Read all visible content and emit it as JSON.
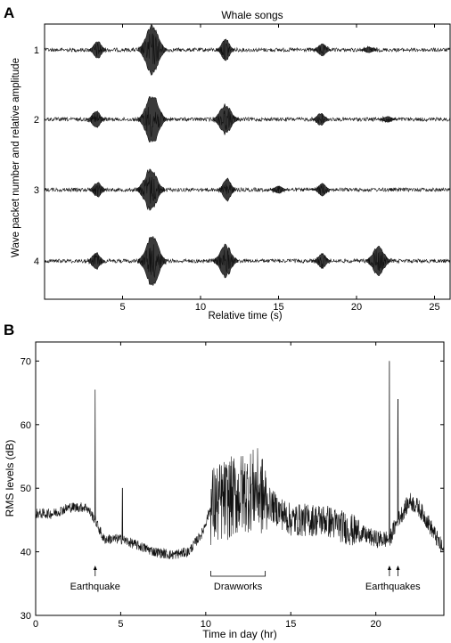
{
  "chart_data": [
    {
      "panel": "A",
      "type": "line",
      "title": "Whale songs",
      "xlabel": "Relative time (s)",
      "ylabel": "Wave packet number and relative amplitude",
      "xlim": [
        0,
        26
      ],
      "xticks": [
        5,
        10,
        15,
        20,
        25
      ],
      "yticks": [
        "1",
        "2",
        "3",
        "4"
      ],
      "series": [
        {
          "packet": "1",
          "bursts": [
            {
              "t": 3.4,
              "amp": 0.35
            },
            {
              "t": 6.9,
              "amp": 1.0
            },
            {
              "t": 11.6,
              "amp": 0.45
            },
            {
              "t": 17.8,
              "amp": 0.25
            },
            {
              "t": 20.8,
              "amp": 0.12
            }
          ]
        },
        {
          "packet": "2",
          "bursts": [
            {
              "t": 3.3,
              "amp": 0.35
            },
            {
              "t": 6.9,
              "amp": 1.0
            },
            {
              "t": 11.6,
              "amp": 0.6
            },
            {
              "t": 17.7,
              "amp": 0.25
            },
            {
              "t": 22.0,
              "amp": 0.12
            }
          ]
        },
        {
          "packet": "3",
          "bursts": [
            {
              "t": 3.4,
              "amp": 0.3
            },
            {
              "t": 6.8,
              "amp": 0.85
            },
            {
              "t": 11.7,
              "amp": 0.45
            },
            {
              "t": 15.0,
              "amp": 0.15
            },
            {
              "t": 17.8,
              "amp": 0.25
            }
          ]
        },
        {
          "packet": "4",
          "bursts": [
            {
              "t": 3.3,
              "amp": 0.35
            },
            {
              "t": 6.9,
              "amp": 1.0
            },
            {
              "t": 11.6,
              "amp": 0.65
            },
            {
              "t": 17.8,
              "amp": 0.3
            },
            {
              "t": 21.4,
              "amp": 0.6
            }
          ]
        }
      ]
    },
    {
      "panel": "B",
      "type": "line",
      "xlabel": "Time in day (hr)",
      "ylabel": "RMS levels (dB)",
      "xlim": [
        0,
        24
      ],
      "ylim": [
        30,
        73
      ],
      "xticks": [
        0,
        5,
        10,
        15,
        20
      ],
      "yticks": [
        30,
        40,
        50,
        60,
        70
      ],
      "series": [
        {
          "x": [
            0,
            1,
            2,
            3,
            3.5,
            4,
            5,
            6,
            7,
            8,
            9,
            9.8,
            10.3,
            11,
            12,
            13,
            13.5,
            14,
            15,
            16,
            17,
            18,
            19,
            20,
            20.8,
            21.3,
            22,
            22.5,
            23,
            24
          ],
          "y": [
            46,
            46,
            47,
            47,
            45,
            42,
            42,
            41,
            40,
            39.5,
            40,
            43,
            47,
            48,
            49,
            50,
            48,
            47,
            45,
            45,
            45,
            44,
            43,
            42,
            42,
            45,
            48,
            47,
            45,
            40
          ]
        }
      ],
      "spikes": [
        {
          "x": 3.5,
          "y": 65.5
        },
        {
          "x": 5.1,
          "y": 50
        },
        {
          "x": 20.8,
          "y": 70
        },
        {
          "x": 21.3,
          "y": 64
        }
      ],
      "annotations": [
        {
          "text": "Earthquake",
          "x": 3.5,
          "arrows": [
            3.5
          ]
        },
        {
          "text": "Drawworks",
          "x": 11.9,
          "bracket": [
            10.3,
            13.5
          ]
        },
        {
          "text": "Earthquakes",
          "x": 21.0,
          "arrows": [
            20.8,
            21.3
          ]
        }
      ]
    }
  ]
}
